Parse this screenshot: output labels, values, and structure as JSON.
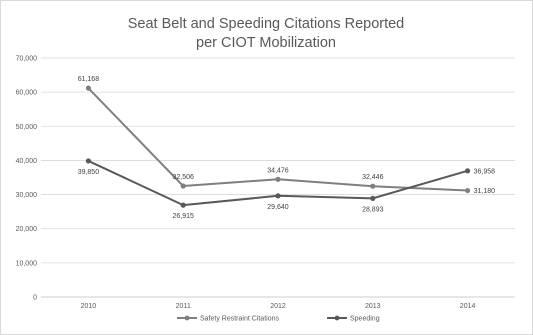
{
  "chart_data": {
    "type": "line",
    "title_lines": [
      "Seat Belt and Speeding Citations Reported",
      "per CIOT Mobilization"
    ],
    "categories": [
      "2010",
      "2011",
      "2012",
      "2013",
      "2014"
    ],
    "ylim": [
      0,
      70000
    ],
    "yticks": [
      0,
      10000,
      20000,
      30000,
      40000,
      50000,
      60000,
      70000
    ],
    "ytick_labels": [
      "0",
      "10,000",
      "20,000",
      "30,000",
      "40,000",
      "50,000",
      "60,000",
      "70,000"
    ],
    "grid": true,
    "legend_position": "bottom",
    "series": [
      {
        "name": "Safety Restraint Citations",
        "values": [
          61168,
          32506,
          34476,
          32446,
          31180
        ],
        "labels": [
          "61,168",
          "32,506",
          "34,476",
          "32,446",
          "31,180"
        ],
        "label_positions": [
          "above",
          "above",
          "above",
          "above",
          "right"
        ],
        "color": "#7f7f7f"
      },
      {
        "name": "Speeding",
        "values": [
          39850,
          26915,
          29640,
          28893,
          36958
        ],
        "labels": [
          "39,850",
          "26,915",
          "29,640",
          "28,893",
          "36,958"
        ],
        "label_positions": [
          "below",
          "below",
          "below",
          "below",
          "right"
        ],
        "color": "#595959"
      }
    ]
  }
}
